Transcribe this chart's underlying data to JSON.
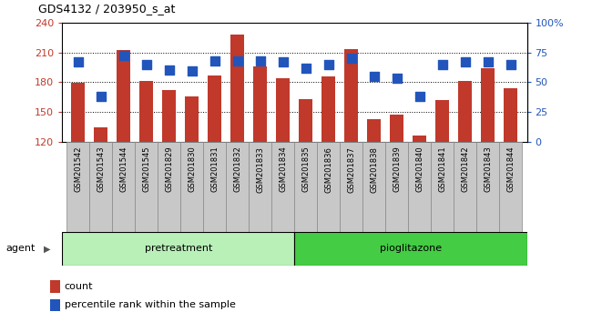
{
  "title": "GDS4132 / 203950_s_at",
  "samples": [
    "GSM201542",
    "GSM201543",
    "GSM201544",
    "GSM201545",
    "GSM201829",
    "GSM201830",
    "GSM201831",
    "GSM201832",
    "GSM201833",
    "GSM201834",
    "GSM201835",
    "GSM201836",
    "GSM201837",
    "GSM201838",
    "GSM201839",
    "GSM201840",
    "GSM201841",
    "GSM201842",
    "GSM201843",
    "GSM201844"
  ],
  "counts": [
    179,
    134,
    212,
    181,
    172,
    166,
    187,
    228,
    196,
    184,
    163,
    186,
    213,
    143,
    147,
    126,
    162,
    181,
    194,
    174
  ],
  "percentile": [
    67,
    38,
    72,
    65,
    60,
    59,
    68,
    68,
    68,
    67,
    62,
    65,
    70,
    55,
    53,
    38,
    65,
    67,
    67,
    65
  ],
  "pretreatment_count": 10,
  "pioglitazone_count": 10,
  "ylim_left": [
    120,
    240
  ],
  "ylim_right": [
    0,
    100
  ],
  "yticks_left": [
    120,
    150,
    180,
    210,
    240
  ],
  "yticks_right": [
    0,
    25,
    50,
    75,
    100
  ],
  "bar_color": "#c0392b",
  "scatter_color": "#2255bb",
  "pretreatment_color": "#b8f0b8",
  "pioglitazone_color": "#44cc44",
  "agent_label": "agent",
  "pretreatment_label": "pretreatment",
  "pioglitazone_label": "pioglitazone",
  "legend_count": "count",
  "legend_percentile": "percentile rank within the sample",
  "background_color": "#c8c8c8",
  "cell_border_color": "#888888",
  "plot_bg": "#ffffff"
}
